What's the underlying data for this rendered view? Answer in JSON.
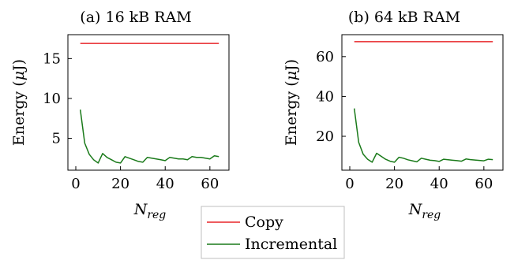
{
  "figure": {
    "legend": {
      "placement": "bottom-center",
      "entries": [
        {
          "name": "Copy",
          "color": "#e8262a"
        },
        {
          "name": "Incremental",
          "color": "#1a7a1a"
        }
      ]
    }
  },
  "chart_data": [
    {
      "type": "line",
      "title": "(a) 16 kB RAM",
      "xlabel": "N_reg",
      "ylabel": "Energy (μJ)",
      "xlim": [
        0,
        65
      ],
      "ylim": [
        1.0,
        18.0
      ],
      "xticks": [
        0,
        20,
        40,
        60
      ],
      "yticks": [
        5,
        10,
        15
      ],
      "x": [
        2,
        4,
        6,
        8,
        10,
        12,
        14,
        16,
        18,
        20,
        22,
        24,
        26,
        28,
        30,
        32,
        34,
        36,
        38,
        40,
        42,
        44,
        46,
        48,
        50,
        52,
        54,
        56,
        58,
        60,
        62,
        64
      ],
      "series": [
        {
          "name": "Copy",
          "color": "#e8262a",
          "values": [
            16.9,
            16.9,
            16.9,
            16.9,
            16.9,
            16.9,
            16.9,
            16.9,
            16.9,
            16.9,
            16.9,
            16.9,
            16.9,
            16.9,
            16.9,
            16.9,
            16.9,
            16.9,
            16.9,
            16.9,
            16.9,
            16.9,
            16.9,
            16.9,
            16.9,
            16.9,
            16.9,
            16.9,
            16.9,
            16.9,
            16.9,
            16.9
          ]
        },
        {
          "name": "Incremental",
          "color": "#1a7a1a",
          "values": [
            8.6,
            4.4,
            3.0,
            2.3,
            1.9,
            3.1,
            2.6,
            2.3,
            2.0,
            1.9,
            2.7,
            2.5,
            2.3,
            2.1,
            2.0,
            2.6,
            2.5,
            2.4,
            2.3,
            2.2,
            2.6,
            2.5,
            2.4,
            2.4,
            2.3,
            2.7,
            2.6,
            2.6,
            2.5,
            2.4,
            2.8,
            2.7
          ]
        }
      ]
    },
    {
      "type": "line",
      "title": "(b) 64 kB RAM",
      "xlabel": "N_reg",
      "ylabel": "Energy (μJ)",
      "xlim": [
        0,
        65
      ],
      "ylim": [
        3.0,
        71.0
      ],
      "xticks": [
        0,
        20,
        40,
        60
      ],
      "yticks": [
        20,
        40,
        60
      ],
      "x": [
        2,
        4,
        6,
        8,
        10,
        12,
        14,
        16,
        18,
        20,
        22,
        24,
        26,
        28,
        30,
        32,
        34,
        36,
        38,
        40,
        42,
        44,
        46,
        48,
        50,
        52,
        54,
        56,
        58,
        60,
        62,
        64
      ],
      "series": [
        {
          "name": "Copy",
          "color": "#e8262a",
          "values": [
            67.5,
            67.5,
            67.5,
            67.5,
            67.5,
            67.5,
            67.5,
            67.5,
            67.5,
            67.5,
            67.5,
            67.5,
            67.5,
            67.5,
            67.5,
            67.5,
            67.5,
            67.5,
            67.5,
            67.5,
            67.5,
            67.5,
            67.5,
            67.5,
            67.5,
            67.5,
            67.5,
            67.5,
            67.5,
            67.5,
            67.5,
            67.5
          ]
        },
        {
          "name": "Incremental",
          "color": "#1a7a1a",
          "values": [
            34.0,
            17.0,
            11.0,
            8.5,
            7.0,
            11.5,
            10.0,
            8.5,
            7.5,
            7.0,
            9.5,
            9.0,
            8.2,
            7.7,
            7.2,
            9.0,
            8.5,
            8.0,
            7.8,
            7.4,
            8.5,
            8.2,
            8.0,
            7.8,
            7.5,
            8.6,
            8.3,
            8.1,
            7.9,
            7.7,
            8.5,
            8.3
          ]
        }
      ]
    }
  ]
}
